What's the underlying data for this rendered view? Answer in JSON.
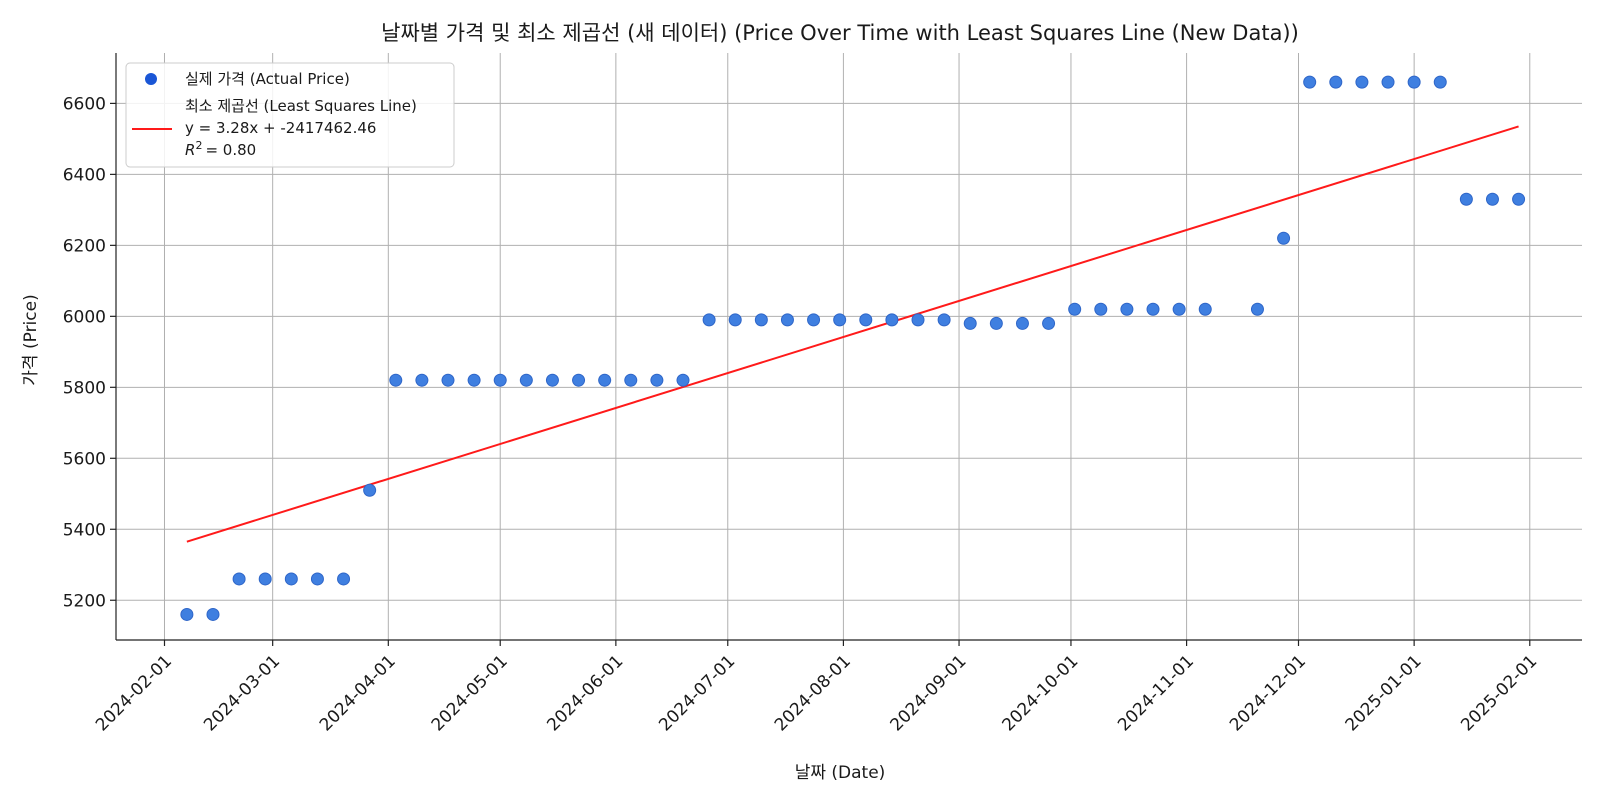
{
  "chart_data": {
    "type": "scatter",
    "title": "날짜별 가격 및 최소 제곱선 (새 데이터) (Price Over Time with Least Squares Line (New Data))",
    "xlabel": "날짜 (Date)",
    "ylabel": "가격 (Price)",
    "xlim": [
      "2024-01-19",
      "2025-02-15"
    ],
    "ylim": [
      5088,
      6742
    ],
    "x_ticks": [
      "2024-02-01",
      "2024-03-01",
      "2024-04-01",
      "2024-05-01",
      "2024-06-01",
      "2024-07-01",
      "2024-08-01",
      "2024-09-01",
      "2024-10-01",
      "2024-11-01",
      "2024-12-01",
      "2025-01-01",
      "2025-02-01"
    ],
    "y_ticks": [
      5200,
      5400,
      5600,
      5800,
      6000,
      6200,
      6400,
      6600
    ],
    "grid": true,
    "legend_position": "top-left",
    "colors": {
      "points": "#3f7fe0",
      "point_edge": "#2f66c8",
      "legend_marker": "#1a56d6",
      "line": "#ff1a1a"
    },
    "series": [
      {
        "name": "실제 가격 (Actual Price)",
        "type": "scatter",
        "points": [
          {
            "x": "2024-02-07",
            "y": 5160
          },
          {
            "x": "2024-02-14",
            "y": 5160
          },
          {
            "x": "2024-02-21",
            "y": 5260
          },
          {
            "x": "2024-02-28",
            "y": 5260
          },
          {
            "x": "2024-03-06",
            "y": 5260
          },
          {
            "x": "2024-03-13",
            "y": 5260
          },
          {
            "x": "2024-03-20",
            "y": 5260
          },
          {
            "x": "2024-03-27",
            "y": 5510
          },
          {
            "x": "2024-04-03",
            "y": 5820
          },
          {
            "x": "2024-04-10",
            "y": 5820
          },
          {
            "x": "2024-04-17",
            "y": 5820
          },
          {
            "x": "2024-04-24",
            "y": 5820
          },
          {
            "x": "2024-05-01",
            "y": 5820
          },
          {
            "x": "2024-05-08",
            "y": 5820
          },
          {
            "x": "2024-05-15",
            "y": 5820
          },
          {
            "x": "2024-05-22",
            "y": 5820
          },
          {
            "x": "2024-05-29",
            "y": 5820
          },
          {
            "x": "2024-06-05",
            "y": 5820
          },
          {
            "x": "2024-06-12",
            "y": 5820
          },
          {
            "x": "2024-06-19",
            "y": 5820
          },
          {
            "x": "2024-06-26",
            "y": 5990
          },
          {
            "x": "2024-07-03",
            "y": 5990
          },
          {
            "x": "2024-07-10",
            "y": 5990
          },
          {
            "x": "2024-07-17",
            "y": 5990
          },
          {
            "x": "2024-07-24",
            "y": 5990
          },
          {
            "x": "2024-07-31",
            "y": 5990
          },
          {
            "x": "2024-08-07",
            "y": 5990
          },
          {
            "x": "2024-08-14",
            "y": 5990
          },
          {
            "x": "2024-08-21",
            "y": 5990
          },
          {
            "x": "2024-08-28",
            "y": 5990
          },
          {
            "x": "2024-09-04",
            "y": 5980
          },
          {
            "x": "2024-09-11",
            "y": 5980
          },
          {
            "x": "2024-09-18",
            "y": 5980
          },
          {
            "x": "2024-09-25",
            "y": 5980
          },
          {
            "x": "2024-10-02",
            "y": 6020
          },
          {
            "x": "2024-10-09",
            "y": 6020
          },
          {
            "x": "2024-10-16",
            "y": 6020
          },
          {
            "x": "2024-10-23",
            "y": 6020
          },
          {
            "x": "2024-10-30",
            "y": 6020
          },
          {
            "x": "2024-11-06",
            "y": 6020
          },
          {
            "x": "2024-11-20",
            "y": 6020
          },
          {
            "x": "2024-11-27",
            "y": 6220
          },
          {
            "x": "2024-12-04",
            "y": 6660
          },
          {
            "x": "2024-12-11",
            "y": 6660
          },
          {
            "x": "2024-12-18",
            "y": 6660
          },
          {
            "x": "2024-12-25",
            "y": 6660
          },
          {
            "x": "2025-01-01",
            "y": 6660
          },
          {
            "x": "2025-01-08",
            "y": 6660
          },
          {
            "x": "2025-01-15",
            "y": 6330
          },
          {
            "x": "2025-01-22",
            "y": 6330
          },
          {
            "x": "2025-01-29",
            "y": 6330
          }
        ]
      },
      {
        "name": "최소 제곱선 (Least Squares Line)",
        "type": "line",
        "equation": "y = 3.28x + -2417462.46",
        "r2_label": "= 0.80",
        "points": [
          {
            "x": "2024-02-07",
            "y": 5365
          },
          {
            "x": "2025-01-29",
            "y": 6535
          }
        ]
      }
    ]
  }
}
